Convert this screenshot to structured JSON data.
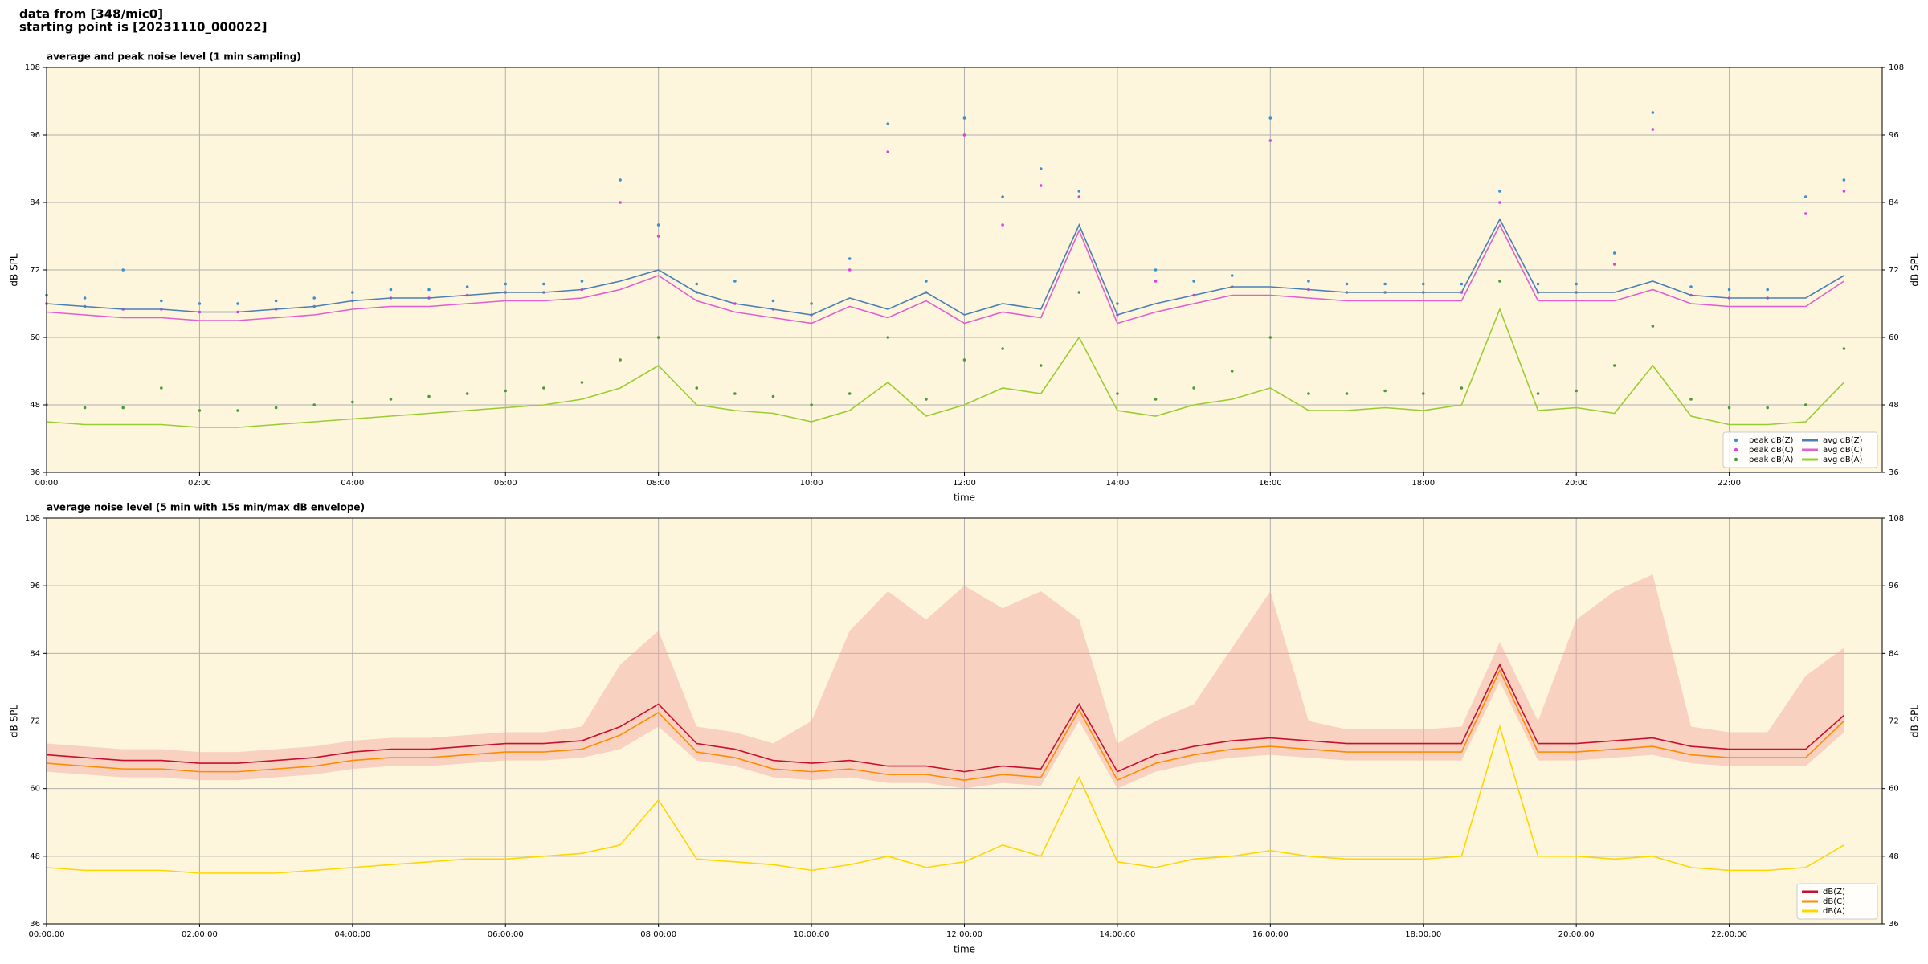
{
  "header": {
    "line1": "data from [348/mic0]",
    "line2": "starting point is [20231110_000022]"
  },
  "chart_data": [
    {
      "type": "line",
      "title": "average and peak noise level (1 min sampling)",
      "xlabel": "time",
      "ylabel": "dB SPL",
      "xlim": [
        0,
        24
      ],
      "ylim": [
        36,
        108
      ],
      "yticks": [
        36,
        48,
        60,
        72,
        84,
        96,
        108
      ],
      "grid": true,
      "legend": "lower right",
      "legend_columns": 2,
      "xticks": [
        {
          "value": 0,
          "label": "00:00"
        },
        {
          "value": 2,
          "label": "02:00"
        },
        {
          "value": 4,
          "label": "04:00"
        },
        {
          "value": 6,
          "label": "06:00"
        },
        {
          "value": 8,
          "label": "08:00"
        },
        {
          "value": 10,
          "label": "10:00"
        },
        {
          "value": 12,
          "label": "12:00"
        },
        {
          "value": 14,
          "label": "14:00"
        },
        {
          "value": 16,
          "label": "16:00"
        },
        {
          "value": 18,
          "label": "18:00"
        },
        {
          "value": 20,
          "label": "20:00"
        },
        {
          "value": 22,
          "label": "22:00"
        }
      ],
      "x": [
        0,
        0.5,
        1,
        1.5,
        2,
        2.5,
        3,
        3.5,
        4,
        4.5,
        5,
        5.5,
        6,
        6.5,
        7,
        7.5,
        8,
        8.5,
        9,
        9.5,
        10,
        10.5,
        11,
        11.5,
        12,
        12.5,
        13,
        13.5,
        14,
        14.5,
        15,
        15.5,
        16,
        16.5,
        17,
        17.5,
        18,
        18.5,
        19,
        19.5,
        20,
        20.5,
        21,
        21.5,
        22,
        22.5,
        23,
        23.5
      ],
      "series": [
        {
          "name": "peak dB(Z)",
          "mark": "dots",
          "color": "#3a8fd0",
          "values": [
            67.5,
            67,
            72,
            66.5,
            66,
            66,
            66.5,
            67,
            68,
            68.5,
            68.5,
            69,
            69.5,
            69.5,
            70,
            88,
            80,
            69.5,
            70,
            66.5,
            66,
            74,
            98,
            70,
            99,
            85,
            90,
            86,
            66,
            72,
            70,
            71,
            99,
            70,
            69.5,
            69.5,
            69.5,
            69.5,
            86,
            69.5,
            69.5,
            75,
            100,
            69,
            68.5,
            68.5,
            85,
            88
          ]
        },
        {
          "name": "peak dB(C)",
          "mark": "dots",
          "color": "#e040e0",
          "values": [
            66,
            65.5,
            65,
            65,
            64.5,
            64.5,
            65,
            65.5,
            66.5,
            67,
            67,
            67.5,
            68,
            68,
            68.5,
            84,
            78,
            68,
            66,
            65,
            64,
            72,
            93,
            68,
            96,
            80,
            87,
            85,
            64,
            70,
            67.5,
            69,
            95,
            68.5,
            68,
            68,
            68,
            68,
            84,
            68,
            68,
            73,
            97,
            67.5,
            67,
            67,
            82,
            86
          ]
        },
        {
          "name": "peak dB(A)",
          "mark": "dots",
          "color": "#4a9a3a",
          "values": [
            48,
            47.5,
            47.5,
            51,
            47,
            47,
            47.5,
            48,
            48.5,
            49,
            49.5,
            50,
            50.5,
            51,
            52,
            56,
            60,
            51,
            50,
            49.5,
            48,
            50,
            60,
            49,
            56,
            58,
            55,
            68,
            50,
            49,
            51,
            54,
            60,
            50,
            50,
            50.5,
            50,
            51,
            70,
            50,
            50.5,
            55,
            62,
            49,
            47.5,
            47.5,
            48,
            58
          ]
        },
        {
          "name": "avg dB(Z)",
          "mark": "line",
          "color": "#4a7fb5",
          "values": [
            66,
            65.5,
            65,
            65,
            64.5,
            64.5,
            65,
            65.5,
            66.5,
            67,
            67,
            67.5,
            68,
            68,
            68.5,
            70,
            72,
            68,
            66,
            65,
            64,
            67,
            65,
            68,
            64,
            66,
            65,
            80,
            64,
            66,
            67.5,
            69,
            69,
            68.5,
            68,
            68,
            68,
            68,
            81,
            68,
            68,
            68,
            70,
            67.5,
            67,
            67,
            67,
            71
          ]
        },
        {
          "name": "avg dB(C)",
          "mark": "line",
          "color": "#e060d0",
          "values": [
            64.5,
            64,
            63.5,
            63.5,
            63,
            63,
            63.5,
            64,
            65,
            65.5,
            65.5,
            66,
            66.5,
            66.5,
            67,
            68.5,
            71,
            66.5,
            64.5,
            63.5,
            62.5,
            65.5,
            63.5,
            66.5,
            62.5,
            64.5,
            63.5,
            79,
            62.5,
            64.5,
            66,
            67.5,
            67.5,
            67,
            66.5,
            66.5,
            66.5,
            66.5,
            80,
            66.5,
            66.5,
            66.5,
            68.5,
            66,
            65.5,
            65.5,
            65.5,
            70
          ]
        },
        {
          "name": "avg dB(A)",
          "mark": "line",
          "color": "#9acd32",
          "values": [
            45,
            44.5,
            44.5,
            44.5,
            44,
            44,
            44.5,
            45,
            45.5,
            46,
            46.5,
            47,
            47.5,
            48,
            49,
            51,
            55,
            48,
            47,
            46.5,
            45,
            47,
            52,
            46,
            48,
            51,
            50,
            60,
            47,
            46,
            48,
            49,
            51,
            47,
            47,
            47.5,
            47,
            48,
            65,
            47,
            47.5,
            46.5,
            55,
            46,
            44.5,
            44.5,
            45,
            52
          ]
        }
      ]
    },
    {
      "type": "line",
      "title": "average noise level (5 min with 15s min/max dB envelope)",
      "xlabel": "time",
      "ylabel": "dB SPL",
      "xlim": [
        0,
        24
      ],
      "ylim": [
        36,
        108
      ],
      "yticks": [
        36,
        48,
        60,
        72,
        84,
        96,
        108
      ],
      "grid": true,
      "legend": "lower right",
      "legend_columns": 1,
      "xticks": [
        {
          "value": 0,
          "label": "00:00:00"
        },
        {
          "value": 2,
          "label": "02:00:00"
        },
        {
          "value": 4,
          "label": "04:00:00"
        },
        {
          "value": 6,
          "label": "06:00:00"
        },
        {
          "value": 8,
          "label": "08:00:00"
        },
        {
          "value": 10,
          "label": "10:00:00"
        },
        {
          "value": 12,
          "label": "12:00:00"
        },
        {
          "value": 14,
          "label": "14:00:00"
        },
        {
          "value": 16,
          "label": "16:00:00"
        },
        {
          "value": 18,
          "label": "18:00:00"
        },
        {
          "value": 20,
          "label": "20:00:00"
        },
        {
          "value": 22,
          "label": "22:00:00"
        }
      ],
      "x": [
        0,
        0.5,
        1,
        1.5,
        2,
        2.5,
        3,
        3.5,
        4,
        4.5,
        5,
        5.5,
        6,
        6.5,
        7,
        7.5,
        8,
        8.5,
        9,
        9.5,
        10,
        10.5,
        11,
        11.5,
        12,
        12.5,
        13,
        13.5,
        14,
        14.5,
        15,
        15.5,
        16,
        16.5,
        17,
        17.5,
        18,
        18.5,
        19,
        19.5,
        20,
        20.5,
        21,
        21.5,
        22,
        22.5,
        23,
        23.5
      ],
      "envelope": {
        "color": "#f4a6a0",
        "max": [
          68,
          67.5,
          67,
          67,
          66.5,
          66.5,
          67,
          67.5,
          68.5,
          69,
          69,
          69.5,
          70,
          70,
          71,
          82,
          88,
          71,
          70,
          68,
          72,
          88,
          95,
          90,
          96,
          92,
          95,
          90,
          68,
          72,
          75,
          85,
          95,
          72,
          70.5,
          70.5,
          70.5,
          71,
          86,
          72,
          90,
          95,
          98,
          71,
          70,
          70,
          80,
          85
        ],
        "min": [
          63,
          62.5,
          62,
          62,
          61.5,
          61.5,
          62,
          62.5,
          63.5,
          64,
          64,
          64.5,
          65,
          65,
          65.5,
          67,
          71,
          65,
          64,
          62,
          61.5,
          62,
          61,
          61,
          60,
          61,
          60.5,
          72,
          60,
          63,
          64.5,
          65.5,
          66,
          65.5,
          65,
          65,
          65,
          65,
          79,
          65,
          65,
          65.5,
          66,
          64.5,
          64,
          64,
          64,
          70
        ]
      },
      "series": [
        {
          "name": "dB(Z)",
          "mark": "line",
          "color": "#c8102e",
          "values": [
            66,
            65.5,
            65,
            65,
            64.5,
            64.5,
            65,
            65.5,
            66.5,
            67,
            67,
            67.5,
            68,
            68,
            68.5,
            71,
            75,
            68,
            67,
            65,
            64.5,
            65,
            64,
            64,
            63,
            64,
            63.5,
            75,
            63,
            66,
            67.5,
            68.5,
            69,
            68.5,
            68,
            68,
            68,
            68,
            82,
            68,
            68,
            68.5,
            69,
            67.5,
            67,
            67,
            67,
            73
          ]
        },
        {
          "name": "dB(C)",
          "mark": "line",
          "color": "#ff8c00",
          "values": [
            64.5,
            64,
            63.5,
            63.5,
            63,
            63,
            63.5,
            64,
            65,
            65.5,
            65.5,
            66,
            66.5,
            66.5,
            67,
            69.5,
            73.5,
            66.5,
            65.5,
            63.5,
            63,
            63.5,
            62.5,
            62.5,
            61.5,
            62.5,
            62,
            74,
            61.5,
            64.5,
            66,
            67,
            67.5,
            67,
            66.5,
            66.5,
            66.5,
            66.5,
            81,
            66.5,
            66.5,
            67,
            67.5,
            66,
            65.5,
            65.5,
            65.5,
            72
          ]
        },
        {
          "name": "dB(A)",
          "mark": "line",
          "color": "#ffd700",
          "values": [
            46,
            45.5,
            45.5,
            45.5,
            45,
            45,
            45,
            45.5,
            46,
            46.5,
            47,
            47.5,
            47.5,
            48,
            48.5,
            50,
            58,
            47.5,
            47,
            46.5,
            45.5,
            46.5,
            48,
            46,
            47,
            50,
            48,
            62,
            47,
            46,
            47.5,
            48,
            49,
            48,
            47.5,
            47.5,
            47.5,
            48,
            71,
            48,
            48,
            47.5,
            48,
            46,
            45.5,
            45.5,
            46,
            50
          ]
        }
      ]
    }
  ]
}
